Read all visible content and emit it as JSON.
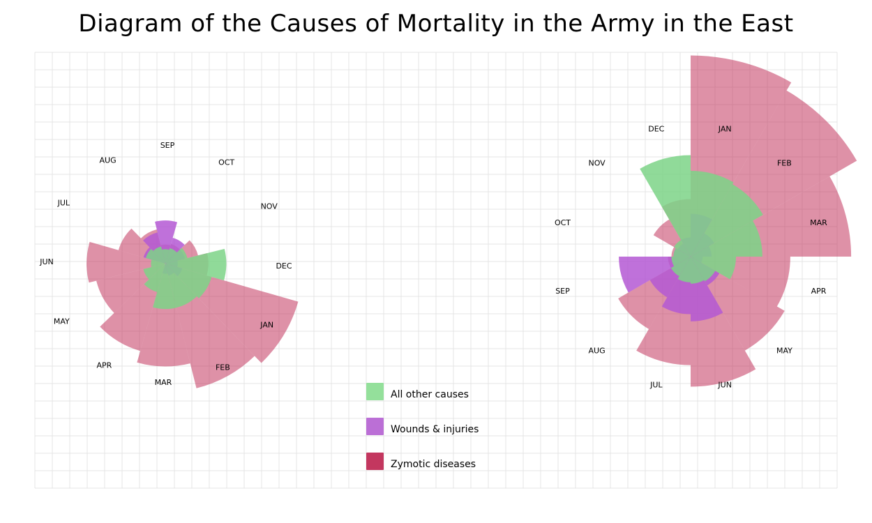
{
  "chart_data": {
    "type": "polar-area",
    "title": "Diagram of the Causes of Mortality in the Army in the East",
    "grid": true,
    "legend_position": "center-bottom",
    "series": [
      {
        "name": "All other causes",
        "color": "#7dd487"
      },
      {
        "name": "Wounds & injuries",
        "color": "#b458d4"
      },
      {
        "name": "Zymotic diseases",
        "color": "#c3375f"
      }
    ],
    "legend_swatch_colors": [
      "#94e09b",
      "#bb6fd6",
      "#c3375f"
    ],
    "charts": [
      {
        "name": "left",
        "months": [
          {
            "label": "APR",
            "zymotic": 160,
            "wounds": 0,
            "other": 17
          },
          {
            "label": "MAY",
            "zymotic": 98,
            "wounds": 0,
            "other": 10
          },
          {
            "label": "JUN",
            "zymotic": 120,
            "wounds": 0,
            "other": 4
          },
          {
            "label": "JUL",
            "zymotic": 46,
            "wounds": 10,
            "other": 8
          },
          {
            "label": "AUG",
            "zymotic": 24,
            "wounds": 20,
            "other": 6
          },
          {
            "label": "SEP",
            "zymotic": 7,
            "wounds": 36,
            "other": 4
          },
          {
            "label": "OCT",
            "zymotic": 8,
            "wounds": 14,
            "other": 5
          },
          {
            "label": "NOV",
            "zymotic": 22,
            "wounds": 8,
            "other": 10
          },
          {
            "label": "DEC",
            "zymotic": 36,
            "wounds": 3,
            "other": 72
          },
          {
            "label": "JAN",
            "zymotic": 370,
            "wounds": 6,
            "other": 45
          },
          {
            "label": "FEB",
            "zymotic": 320,
            "wounds": 3,
            "other": 40
          },
          {
            "label": "MAR",
            "zymotic": 205,
            "wounds": 2,
            "other": 40
          }
        ]
      },
      {
        "name": "right",
        "months": [
          {
            "label": "APR",
            "zymotic": 135,
            "wounds": 2,
            "other": 28
          },
          {
            "label": "MAY",
            "zymotic": 160,
            "wounds": 15,
            "other": 11
          },
          {
            "label": "JUN",
            "zymotic": 230,
            "wounds": 57,
            "other": 10
          },
          {
            "label": "JUL",
            "zymotic": 160,
            "wounds": 45,
            "other": 9
          },
          {
            "label": "AUG",
            "zymotic": 95,
            "wounds": 30,
            "other": 7
          },
          {
            "label": "SEP",
            "zymotic": 7,
            "wounds": 70,
            "other": 5
          },
          {
            "label": "OCT",
            "zymotic": 5,
            "wounds": 4,
            "other": 4
          },
          {
            "label": "NOV",
            "zymotic": 25,
            "wounds": 3,
            "other": 5
          },
          {
            "label": "DEC",
            "zymotic": 45,
            "wounds": 5,
            "other": 140
          },
          {
            "label": "JAN",
            "zymotic": 550,
            "wounds": 25,
            "other": 100
          },
          {
            "label": "FEB",
            "zymotic": 500,
            "wounds": 10,
            "other": 95
          },
          {
            "label": "MAR",
            "zymotic": 350,
            "wounds": 6,
            "other": 70
          }
        ]
      }
    ]
  }
}
